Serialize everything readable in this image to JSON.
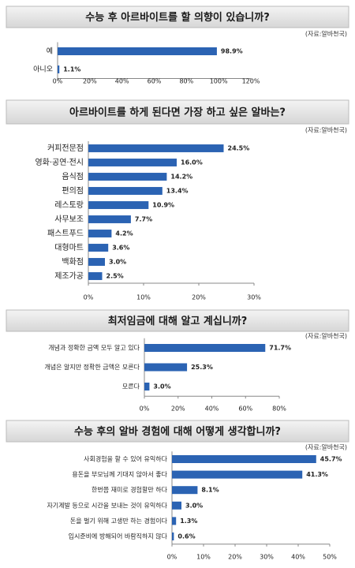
{
  "chart_data": [
    {
      "type": "bar",
      "title": "수능 후 아르바이트를 할 의향이 있습니까?",
      "source": "(자료:알바천국)",
      "categories": [
        "예",
        "아니오"
      ],
      "values": [
        98.9,
        1.1
      ],
      "value_labels": [
        "98.9%",
        "1.1%"
      ],
      "color": "#2b63b3",
      "xlim": [
        0,
        120
      ],
      "xticks": [
        {
          "value": 0,
          "label": "0%"
        },
        {
          "value": 20,
          "label": "20%"
        },
        {
          "value": 40,
          "label": "40%"
        },
        {
          "value": 60,
          "label": "60%"
        },
        {
          "value": 80,
          "label": "80%"
        },
        {
          "value": 100,
          "label": "100%"
        },
        {
          "value": 120,
          "label": "120%"
        }
      ]
    },
    {
      "type": "bar",
      "title": "아르바이트를 하게 된다면 가장 하고 싶은 알바는?",
      "source": "(자료:알바천국)",
      "categories": [
        "커피전문점",
        "영화·공연·전시",
        "음식점",
        "편의점",
        "레스토랑",
        "사무보조",
        "패스트푸드",
        "대형마트",
        "백화점",
        "제조가공"
      ],
      "values": [
        24.5,
        16.0,
        14.2,
        13.4,
        10.9,
        7.7,
        4.2,
        3.6,
        3.0,
        2.5
      ],
      "value_labels": [
        "24.5%",
        "16.0%",
        "14.2%",
        "13.4%",
        "10.9%",
        "7.7%",
        "4.2%",
        "3.6%",
        "3.0%",
        "2.5%"
      ],
      "color": "#2b63b3",
      "xlim": [
        0,
        30
      ],
      "xticks": [
        {
          "value": 0,
          "label": "0%"
        },
        {
          "value": 10,
          "label": "10%"
        },
        {
          "value": 20,
          "label": "20%"
        },
        {
          "value": 30,
          "label": "30%"
        }
      ]
    },
    {
      "type": "bar",
      "title": "최저임금에 대해 알고 계십니까?",
      "source": "(자료:알바천국)",
      "categories": [
        "개념과 정확한 금액 모두 알고 있다",
        "개념은 알지만 정확한 금액은 모른다",
        "모른다"
      ],
      "values": [
        71.7,
        25.3,
        3.0
      ],
      "value_labels": [
        "71.7%",
        "25.3%",
        "3.0%"
      ],
      "color": "#2b63b3",
      "xlim": [
        0,
        80
      ],
      "xticks": [
        {
          "value": 0,
          "label": "0%"
        },
        {
          "value": 20,
          "label": "20%"
        },
        {
          "value": 40,
          "label": "40%"
        },
        {
          "value": 60,
          "label": "60%"
        },
        {
          "value": 80,
          "label": "80%"
        }
      ]
    },
    {
      "type": "bar",
      "title": "수능 후의 알바 경험에 대해 어떻게 생각합니까?",
      "source": "(자료:알바천국)",
      "categories": [
        "사회경험을 할 수 있어 유익하다",
        "용돈을 부모님께 기대지 않아서 좋다",
        "한번쯤 재미로 경험할만 하다",
        "자기계발 등으로 시간을 보내는 것이 유익하다",
        "돈을 벌기 위해 고생만 하는 경험이다",
        "입시준비에 방해되어 바람직하지 않다"
      ],
      "values": [
        45.7,
        41.3,
        8.1,
        3.0,
        1.3,
        0.6
      ],
      "value_labels": [
        "45.7%",
        "41.3%",
        "8.1%",
        "3.0%",
        "1.3%",
        "0.6%"
      ],
      "color": "#2b63b3",
      "xlim": [
        0,
        50
      ],
      "xticks": [
        {
          "value": 0,
          "label": "0%"
        },
        {
          "value": 10,
          "label": "10%"
        },
        {
          "value": 20,
          "label": "20%"
        },
        {
          "value": 30,
          "label": "30%"
        },
        {
          "value": 40,
          "label": "40%"
        },
        {
          "value": 50,
          "label": "50%"
        }
      ]
    }
  ]
}
